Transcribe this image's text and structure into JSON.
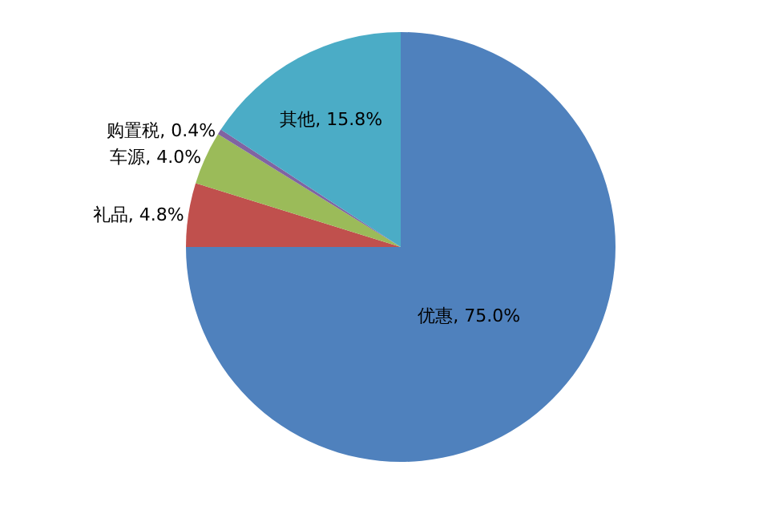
{
  "chart_data": {
    "type": "pie",
    "categories": [
      "优惠",
      "礼品",
      "车源",
      "购置税",
      "其他"
    ],
    "values": [
      75.0,
      4.8,
      4.0,
      0.4,
      15.8
    ],
    "colors": [
      "#4f81bd",
      "#c0504d",
      "#9bbb59",
      "#8064a2",
      "#4bacc6"
    ],
    "value_labels": [
      ", 75.0%",
      ", 4.8%",
      ", 4.0%",
      ", 0.4%",
      ", 15.8%"
    ]
  }
}
